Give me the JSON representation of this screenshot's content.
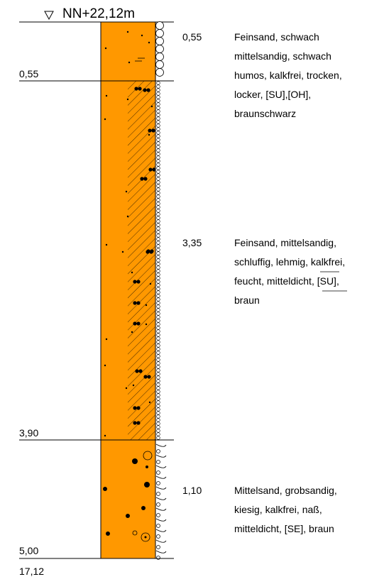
{
  "header": {
    "elevation_label": "NN+22,12m",
    "symbol": "groundwater-triangle-icon"
  },
  "colors": {
    "soil_fill": "#FF9800",
    "line": "#000000",
    "background": "#FFFFFF"
  },
  "depth_labels": [
    "0,55",
    "3,90",
    "5,00"
  ],
  "bottom_elevation": "17,12",
  "layers": [
    {
      "top": 0.0,
      "bottom": 0.55,
      "thickness": "0,55",
      "description": [
        "Feinsand, schwach",
        "mittelsandig, schwach",
        "humos, kalkfrei, trocken,",
        "locker, [SU],[OH],",
        "braunschwarz"
      ]
    },
    {
      "top": 0.55,
      "bottom": 3.9,
      "thickness": "3,35",
      "description": [
        "Feinsand, mittelsandig,",
        "schluffig, lehmig, kalkfrei,",
        "feucht, mitteldicht, [SU],",
        "braun"
      ]
    },
    {
      "top": 3.9,
      "bottom": 5.0,
      "thickness": "1,10",
      "description": [
        "Mittelsand, grobsandig,",
        "kiesig, kalkfrei, naß,",
        "mitteldicht, [SE], braun"
      ]
    }
  ]
}
